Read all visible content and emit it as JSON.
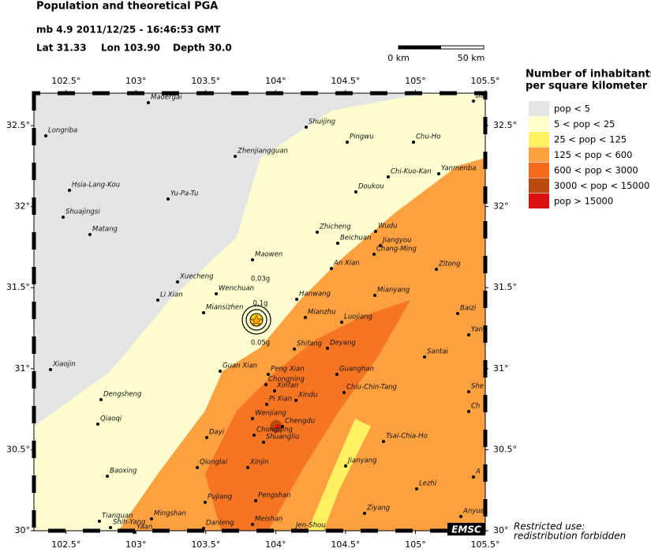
{
  "header": {
    "title": "Population and theoretical PGA",
    "event": "mb 4.9  2011/12/25 - 16:46:53 GMT",
    "lat": "Lat 31.33",
    "lon": "Lon 103.90",
    "depth": "Depth  30.0"
  },
  "scale_bar": {
    "start": "0 km",
    "end": "50 km"
  },
  "map": {
    "xlim": [
      102.27,
      105.5
    ],
    "ylim": [
      30,
      32.7
    ],
    "xticks": [
      {
        "value": 102.5,
        "label": "102.5°"
      },
      {
        "value": 103,
        "label": "103°"
      },
      {
        "value": 103.5,
        "label": "103.5°"
      },
      {
        "value": 104,
        "label": "104°"
      },
      {
        "value": 104.5,
        "label": "104.5°"
      },
      {
        "value": 105,
        "label": "105°"
      },
      {
        "value": 105.5,
        "label": "105.5°"
      }
    ],
    "yticks": [
      {
        "value": 30,
        "label": "30°"
      },
      {
        "value": 30.5,
        "label": "30.5°"
      },
      {
        "value": 31,
        "label": "31°"
      },
      {
        "value": 31.5,
        "label": "31.5°"
      },
      {
        "value": 32,
        "label": "32°"
      },
      {
        "value": 32.5,
        "label": "32.5°"
      }
    ],
    "pga_labels": [
      "0.03g",
      "0.1g",
      "0.05g"
    ],
    "places": [
      "Maoergai",
      "Longriba",
      "Shuijing",
      "Pingwu",
      "Chu-Ho",
      "Zhenjiangguan",
      "Chi-Kuo-Kan",
      "Yanmenba",
      "Hsia-Lang-Kou",
      "Doukou",
      "Yu-Pa-Tu",
      "Shuajingsi",
      "Matang",
      "Zhicheng",
      "Wudu",
      "Beichuan",
      "Jiangyou",
      "Chang-Ming",
      "Maowen",
      "An Xian",
      "Zitong",
      "Xuecheng",
      "Wenchuan",
      "Li Xian",
      "Hanwang",
      "Mianyang",
      "Baizi",
      "Mianzhu",
      "Miansizhen",
      "Luojiang",
      "Yan",
      "Shifang",
      "Deyang",
      "Santai",
      "Xiaojin",
      "Guan Xian",
      "Peng Xian",
      "Guanghan",
      "Chongning",
      "She",
      "Xinfan",
      "Dengsheng",
      "Xindu",
      "Chiu-Chin-Tang",
      "Pi Xian",
      "Ch",
      "Qiaoqi",
      "Wenjiang",
      "Chengdu",
      "Dayi",
      "Chongqing",
      "Shuangliu",
      "Tsai-Chia-Ho",
      "Qionglai",
      "Xinjin",
      "Jianyang",
      "Baoxing",
      "A",
      "Lezhi",
      "Pujiang",
      "Pengshan",
      "Ziyang",
      "Anyue",
      "Mingshan",
      "Tianquan",
      "Shih-Yang",
      "Meishan",
      "Danleng",
      "Yaan",
      "Jen-Shou",
      "Ba"
    ]
  },
  "legend": {
    "title_line1": "Number of inhabitants",
    "title_line2": "per square kilometer",
    "entries": [
      {
        "label": "pop < 5",
        "color": "#e4e4e4"
      },
      {
        "label": "5 < pop < 25",
        "color": "#ffffcc"
      },
      {
        "label": "25 < pop < 125",
        "color": "#fff060"
      },
      {
        "label": "125 < pop < 600",
        "color": "#fca040"
      },
      {
        "label": "600 < pop < 3000",
        "color": "#f46a1c"
      },
      {
        "label": "3000 < pop < 15000",
        "color": "#b84a10"
      },
      {
        "label": "pop > 15000",
        "color": "#dd1111"
      }
    ]
  },
  "footer": {
    "logo": "EMSC",
    "note_line1": "Restricted use:",
    "note_line2": "redistribution forbidden"
  }
}
